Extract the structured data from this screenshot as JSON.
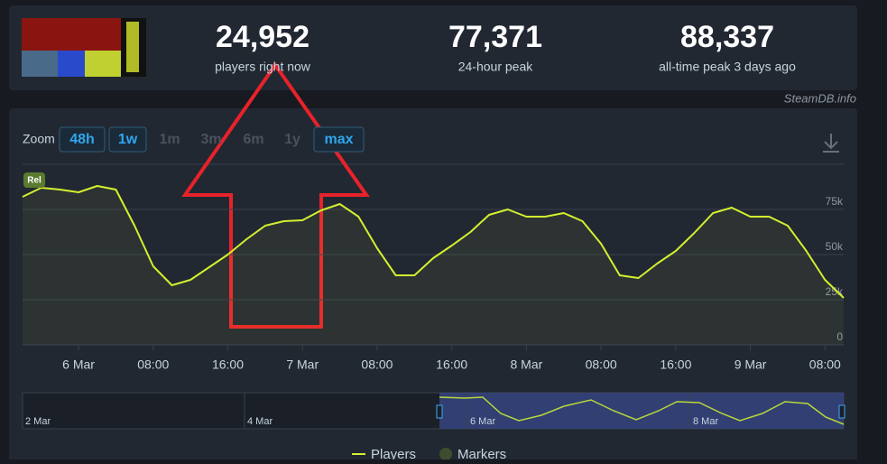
{
  "header": {
    "stats": [
      {
        "value": "24,952",
        "label": "players right now"
      },
      {
        "value": "77,371",
        "label": "24-hour peak"
      },
      {
        "value": "88,337",
        "label": "all-time peak 3 days ago"
      }
    ],
    "source": "SteamDB.info"
  },
  "zoom": {
    "label": "Zoom",
    "options": [
      {
        "text": "48h",
        "enabled": true
      },
      {
        "text": "1w",
        "enabled": true
      },
      {
        "text": "1m",
        "enabled": false
      },
      {
        "text": "3m",
        "enabled": false
      },
      {
        "text": "6m",
        "enabled": false
      },
      {
        "text": "1y",
        "enabled": false
      },
      {
        "text": "max",
        "enabled": true
      }
    ]
  },
  "chart_data": {
    "type": "line",
    "categories": [
      null,
      null,
      null,
      "6 Mar",
      null,
      null,
      null,
      "08:00",
      null,
      null,
      null,
      "16:00",
      null,
      null,
      null,
      "7 Mar",
      null,
      null,
      null,
      "08:00",
      null,
      null,
      null,
      "16:00",
      null,
      null,
      null,
      "8 Mar",
      null,
      null,
      null,
      "08:00",
      null,
      null,
      null,
      "16:00",
      null,
      null,
      null,
      "9 Mar",
      null,
      null,
      null,
      "08:00",
      null
    ],
    "series": [
      {
        "name": "Players",
        "color": "#d4ef2f",
        "values": [
          82000,
          87000,
          86000,
          84500,
          88000,
          86000,
          66000,
          43500,
          33000,
          36000,
          43000,
          50000,
          58500,
          66000,
          68500,
          69000,
          74500,
          78000,
          71000,
          53500,
          38500,
          38500,
          48000,
          55000,
          62500,
          72000,
          75000,
          71000,
          71000,
          73000,
          68500,
          56000,
          38500,
          37000,
          45000,
          52000,
          62000,
          73000,
          76000,
          71000,
          71000,
          66000,
          52000,
          36000,
          26000
        ]
      }
    ],
    "ylim": [
      0,
      100000
    ],
    "yticks": [
      0,
      {
        "value": 25000,
        "label": "25k"
      },
      {
        "value": 50000,
        "label": "50k"
      },
      {
        "value": 75000,
        "label": "75k"
      }
    ],
    "grid": true,
    "marker_label": "Rel",
    "marker_legend": "Markers"
  },
  "navigator": {
    "labels": [
      "2 Mar",
      "4 Mar",
      "6 Mar",
      "8 Mar"
    ]
  }
}
